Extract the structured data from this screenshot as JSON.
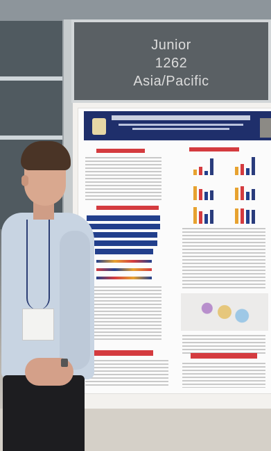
{
  "sign": {
    "line1": "Junior",
    "line2": "1262",
    "line3": "Asia/Pacific"
  }
}
